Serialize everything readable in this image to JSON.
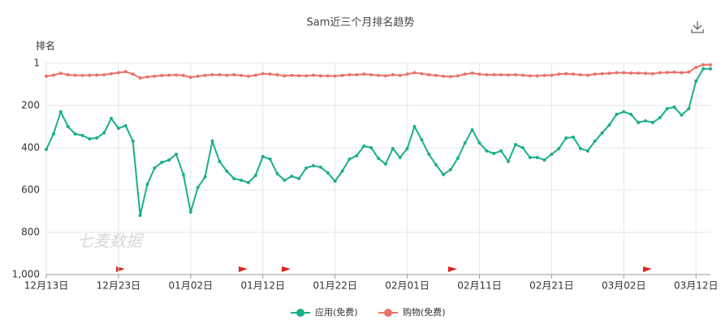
{
  "chart_data": {
    "type": "line",
    "title": "Sam近三个月排名趋势",
    "y_label": "排名",
    "watermark": "七麦数据",
    "inverted_y": true,
    "grid": true,
    "legend_position": "bottom",
    "ylim": [
      1000,
      1
    ],
    "yticks": [
      1,
      200,
      400,
      600,
      800,
      {
        "value": 1000,
        "label": "1,000"
      }
    ],
    "categories": [
      "12月13日",
      null,
      null,
      null,
      null,
      null,
      null,
      null,
      null,
      null,
      "12月23日",
      null,
      null,
      null,
      null,
      null,
      null,
      null,
      null,
      null,
      "01月02日",
      null,
      null,
      null,
      null,
      null,
      null,
      null,
      null,
      null,
      "01月12日",
      null,
      null,
      null,
      null,
      null,
      null,
      null,
      null,
      null,
      "01月22日",
      null,
      null,
      null,
      null,
      null,
      null,
      null,
      null,
      null,
      "02月01日",
      null,
      null,
      null,
      null,
      null,
      null,
      null,
      null,
      null,
      "02月11日",
      null,
      null,
      null,
      null,
      null,
      null,
      null,
      null,
      null,
      "02月21日",
      null,
      null,
      null,
      null,
      null,
      null,
      null,
      null,
      null,
      "03月02日",
      null,
      null,
      null,
      null,
      null,
      null,
      null,
      null,
      null,
      "03月12日",
      null,
      null
    ],
    "series": [
      {
        "name": "应用(免费)",
        "color": "#1aaf8b",
        "values": [
          408,
          335,
          230,
          300,
          335,
          342,
          358,
          354,
          330,
          262,
          308,
          296,
          369,
          720,
          573,
          496,
          469,
          458,
          431,
          527,
          704,
          588,
          538,
          369,
          465,
          511,
          546,
          554,
          565,
          531,
          442,
          454,
          523,
          554,
          535,
          546,
          496,
          485,
          492,
          519,
          558,
          511,
          454,
          438,
          392,
          400,
          450,
          477,
          404,
          446,
          404,
          300,
          362,
          431,
          481,
          527,
          504,
          450,
          377,
          315,
          377,
          415,
          427,
          415,
          465,
          385,
          400,
          446,
          446,
          458,
          431,
          404,
          354,
          350,
          404,
          415,
          369,
          330,
          292,
          242,
          230,
          242,
          281,
          273,
          281,
          258,
          215,
          208,
          246,
          215,
          85,
          27,
          27
        ]
      },
      {
        "name": "购物(免费)",
        "color": "#e8736b",
        "values": [
          62,
          57,
          48,
          55,
          57,
          58,
          57,
          56,
          55,
          50,
          45,
          40,
          52,
          70,
          65,
          62,
          58,
          57,
          56,
          58,
          67,
          62,
          58,
          55,
          55,
          57,
          55,
          58,
          62,
          57,
          50,
          52,
          55,
          60,
          58,
          59,
          60,
          57,
          60,
          60,
          61,
          58,
          55,
          55,
          52,
          55,
          58,
          60,
          55,
          58,
          52,
          45,
          50,
          55,
          58,
          62,
          64,
          60,
          52,
          47,
          52,
          55,
          55,
          55,
          56,
          55,
          57,
          60,
          60,
          58,
          57,
          52,
          50,
          52,
          55,
          57,
          52,
          50,
          48,
          45,
          45,
          47,
          47,
          48,
          50,
          45,
          44,
          43,
          45,
          42,
          20,
          8,
          8
        ]
      }
    ]
  }
}
